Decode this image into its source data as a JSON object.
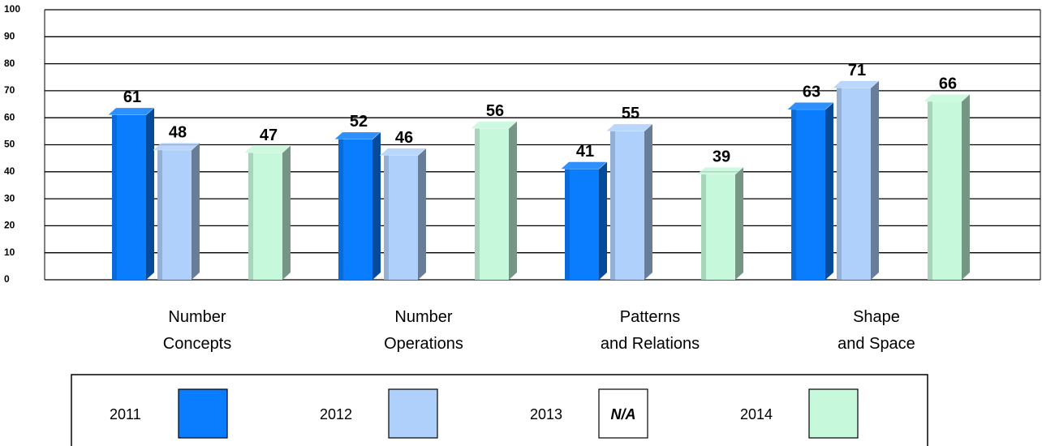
{
  "chart_data": {
    "type": "bar3d",
    "categories": [
      "Number\nConcepts",
      "Number\nOperations",
      "Patterns\nand Relations",
      "Shape\nand Space"
    ],
    "series": [
      {
        "name": "2011",
        "color": "#0a7dff",
        "values": [
          61,
          52,
          41,
          63
        ]
      },
      {
        "name": "2012",
        "color": "#aed0fb",
        "values": [
          48,
          46,
          55,
          71
        ]
      },
      {
        "name": "2013",
        "color": "#ffffff",
        "values": [
          null,
          null,
          null,
          null
        ],
        "swatch_label": "N/A"
      },
      {
        "name": "2014",
        "color": "#c6f9dc",
        "values": [
          47,
          56,
          39,
          66
        ]
      }
    ],
    "ylim": [
      0,
      100
    ],
    "yticks": [
      0,
      10,
      20,
      30,
      40,
      50,
      60,
      70,
      80,
      90,
      100
    ],
    "grid": true,
    "legend": "bottom"
  }
}
